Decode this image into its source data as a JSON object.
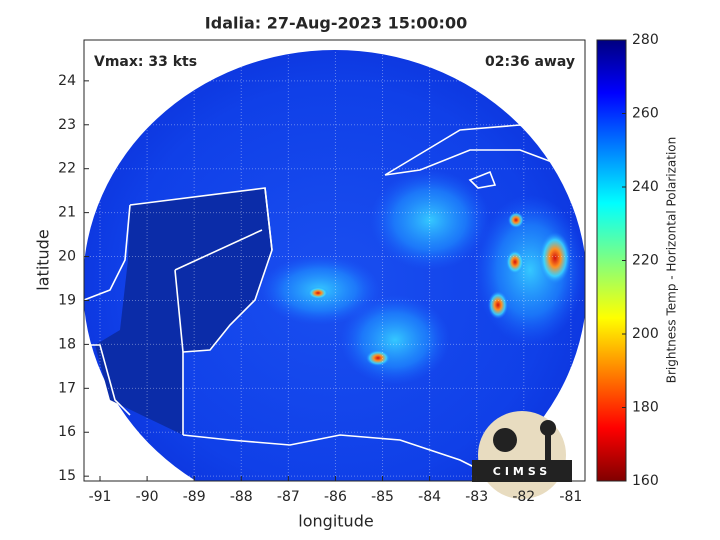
{
  "chart_data": {
    "type": "map",
    "title": "Idalia: 27-Aug-2023 15:00:00",
    "xlabel": "longitude",
    "ylabel": "latitude",
    "xlim": [
      -91.34,
      -80.7
    ],
    "ylim": [
      14.89,
      24.93
    ],
    "xticks": [
      -91,
      -90,
      -89,
      -88,
      -87,
      -86,
      -85,
      -84,
      -83,
      -82,
      -81
    ],
    "yticks": [
      15,
      16,
      17,
      18,
      19,
      20,
      21,
      22,
      23,
      24
    ],
    "grid": true,
    "colorbar": {
      "label": "Brightness Temp - Horizontal Polarization",
      "clim": [
        160,
        280
      ],
      "ticks": [
        160,
        180,
        200,
        220,
        240,
        260,
        280
      ],
      "colormap": "jet"
    },
    "annotations": {
      "left": "Vmax: 33 kts",
      "right": "02:36 away"
    },
    "logo": "CIMSS"
  }
}
